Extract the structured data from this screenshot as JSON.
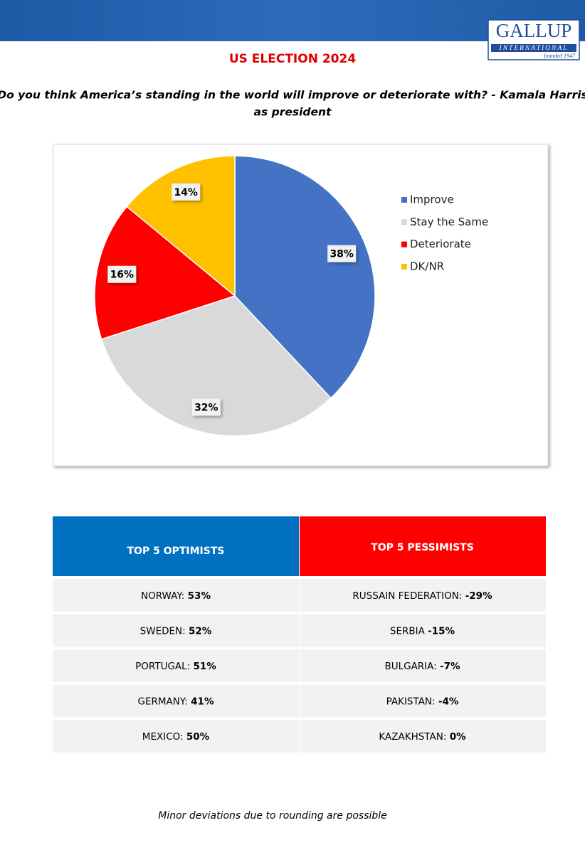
{
  "header": {
    "logo": {
      "name": "GALLUP",
      "sub": "INTERNATIONAL",
      "founded": "founded 1947"
    },
    "title": "US ELECTION 2024",
    "question": [
      "Do you think America’s standing in the world will improve or deteriorate with? - Kamala Harris",
      "as president"
    ]
  },
  "chart_data": {
    "type": "pie",
    "categories": [
      "Improve",
      "Stay the Same",
      "Deteriorate",
      "DK/NR"
    ],
    "values": [
      38,
      32,
      16,
      14
    ],
    "value_labels": [
      "38%",
      "32%",
      "16%",
      "14%"
    ],
    "colors": [
      "#4472c4",
      "#d9d9d9",
      "#ff0000",
      "#ffc000"
    ],
    "legend": "right"
  },
  "table": {
    "headers": [
      "TOP 5 OPTIMISTS",
      "TOP 5 PESSIMISTS"
    ],
    "rows": [
      [
        {
          "name": "NORWAY:",
          "value": "53%"
        },
        {
          "name": "RUSSAIN FEDERATION:",
          "value": "-29%"
        }
      ],
      [
        {
          "name": "SWEDEN:",
          "value": "52%"
        },
        {
          "name": "SERBIA",
          "value": "-15%"
        }
      ],
      [
        {
          "name": "PORTUGAL:",
          "value": "51%"
        },
        {
          "name": "BULGARIA:",
          "value": "-7%"
        }
      ],
      [
        {
          "name": "GERMANY:",
          "value": "41%"
        },
        {
          "name": "PAKISTAN:",
          "value": "-4%"
        }
      ],
      [
        {
          "name": "MEXICO:",
          "value": "50%"
        },
        {
          "name": "KAZAKHSTAN:",
          "value": "0%"
        }
      ]
    ]
  },
  "footer": "Minor deviations due to rounding are possible"
}
